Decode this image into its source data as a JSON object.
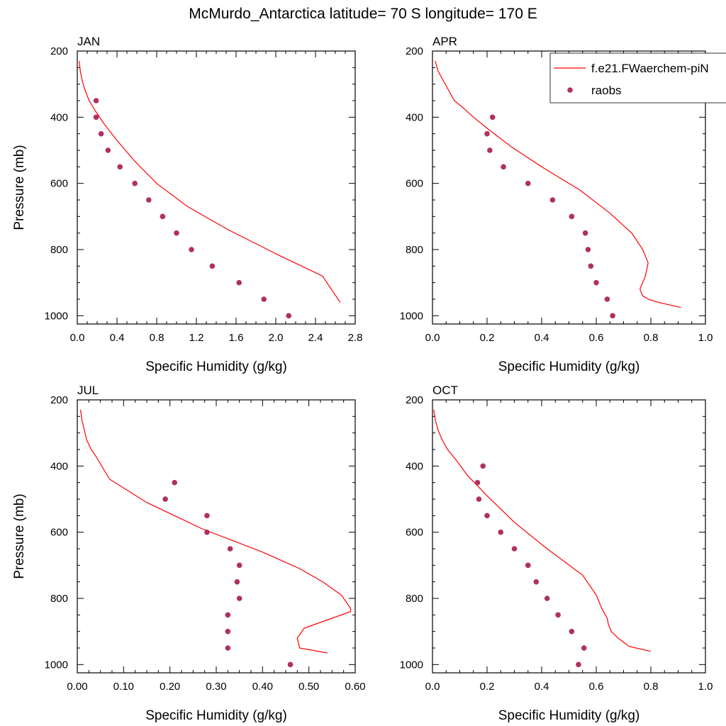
{
  "figure": {
    "title": "McMurdo_Antarctica  latitude= 70 S longitude= 170 E",
    "ylabel": "Pressure (mb)",
    "xlabel": "Specific Humidity (g/kg)"
  },
  "legend": {
    "placement": "top-right",
    "line_label": "f.e21.FWaerchem-piN",
    "dot_label": "raobs"
  },
  "colors": {
    "model_line": "#ff0000",
    "obs_dot": "#b03060"
  },
  "chart_data": [
    {
      "type": "scatter",
      "panel": "JAN",
      "xlim": [
        0,
        2.8
      ],
      "xticks": [
        "0.0",
        "0.4",
        "0.8",
        "1.2",
        "1.6",
        "2.0",
        "2.4",
        "2.8"
      ],
      "xtick_values": [
        0,
        0.4,
        0.8,
        1.2,
        1.6,
        2.0,
        2.4,
        2.8
      ],
      "ylim": [
        200,
        1025
      ],
      "y_inverted": true,
      "yticks": [
        "200",
        "400",
        "600",
        "800",
        "1000"
      ],
      "ytick_values": [
        200,
        400,
        600,
        800,
        1000
      ],
      "series": [
        {
          "name": "f.e21.FWaerchem-piN",
          "kind": "line",
          "x": [
            0.02,
            0.03,
            0.05,
            0.08,
            0.12,
            0.18,
            0.27,
            0.4,
            0.57,
            0.8,
            1.11,
            1.52,
            2.05,
            2.47,
            2.65
          ],
          "y": [
            230,
            260,
            290,
            320,
            350,
            380,
            420,
            470,
            530,
            600,
            670,
            740,
            820,
            880,
            960
          ]
        },
        {
          "name": "raobs",
          "kind": "points",
          "x": [
            0.19,
            0.19,
            0.24,
            0.31,
            0.43,
            0.58,
            0.72,
            0.86,
            1.0,
            1.15,
            1.36,
            1.63,
            1.88,
            2.13
          ],
          "y": [
            350,
            400,
            450,
            500,
            550,
            600,
            650,
            700,
            750,
            800,
            850,
            900,
            950,
            1000
          ]
        }
      ]
    },
    {
      "type": "scatter",
      "panel": "APR",
      "xlim": [
        0,
        1.0
      ],
      "xticks": [
        "0.0",
        "0.2",
        "0.4",
        "0.6",
        "0.8",
        "1.0"
      ],
      "xtick_values": [
        0,
        0.2,
        0.4,
        0.6,
        0.8,
        1.0
      ],
      "ylim": [
        200,
        1025
      ],
      "y_inverted": true,
      "yticks": [
        "200",
        "400",
        "600",
        "800",
        "1000"
      ],
      "ytick_values": [
        200,
        400,
        600,
        800,
        1000
      ],
      "series": [
        {
          "name": "f.e21.FWaerchem-piN",
          "kind": "line",
          "x": [
            0.01,
            0.02,
            0.04,
            0.06,
            0.08,
            0.11,
            0.15,
            0.21,
            0.29,
            0.4,
            0.54,
            0.65,
            0.73,
            0.77,
            0.79,
            0.78,
            0.76,
            0.77,
            0.79,
            0.83,
            0.91
          ],
          "y": [
            230,
            260,
            290,
            320,
            350,
            370,
            400,
            440,
            490,
            550,
            620,
            690,
            750,
            800,
            840,
            880,
            920,
            940,
            950,
            960,
            975
          ]
        },
        {
          "name": "raobs",
          "kind": "points",
          "x": [
            0.22,
            0.2,
            0.21,
            0.26,
            0.35,
            0.44,
            0.51,
            0.56,
            0.57,
            0.58,
            0.6,
            0.64,
            0.66
          ],
          "y": [
            400,
            450,
            500,
            550,
            600,
            650,
            700,
            750,
            800,
            850,
            900,
            950,
            1000
          ]
        }
      ]
    },
    {
      "type": "scatter",
      "panel": "JUL",
      "xlim": [
        0,
        0.6
      ],
      "xticks": [
        "0.00",
        "0.10",
        "0.20",
        "0.30",
        "0.40",
        "0.50",
        "0.60"
      ],
      "xtick_values": [
        0,
        0.1,
        0.2,
        0.3,
        0.4,
        0.5,
        0.6
      ],
      "ylim": [
        200,
        1025
      ],
      "y_inverted": true,
      "yticks": [
        "200",
        "400",
        "600",
        "800",
        "1000"
      ],
      "ytick_values": [
        200,
        400,
        600,
        800,
        1000
      ],
      "series": [
        {
          "name": "f.e21.FWaerchem-piN",
          "kind": "line",
          "x": [
            0.007,
            0.01,
            0.015,
            0.02,
            0.03,
            0.04,
            0.07,
            0.15,
            0.27,
            0.4,
            0.48,
            0.53,
            0.57,
            0.59,
            0.59,
            0.55,
            0.49,
            0.475,
            0.48,
            0.54
          ],
          "y": [
            230,
            260,
            290,
            320,
            350,
            370,
            440,
            510,
            590,
            660,
            710,
            750,
            790,
            830,
            840,
            860,
            890,
            920,
            950,
            965
          ]
        },
        {
          "name": "raobs",
          "kind": "points",
          "x": [
            0.21,
            0.19,
            0.28,
            0.28,
            0.33,
            0.35,
            0.345,
            0.35,
            0.325,
            0.325,
            0.325,
            0.46
          ],
          "y": [
            450,
            500,
            550,
            600,
            650,
            700,
            750,
            800,
            850,
            900,
            950,
            1000
          ]
        }
      ]
    },
    {
      "type": "scatter",
      "panel": "OCT",
      "xlim": [
        0,
        1.0
      ],
      "xticks": [
        "0.0",
        "0.2",
        "0.4",
        "0.6",
        "0.8",
        "1.0"
      ],
      "xtick_values": [
        0,
        0.2,
        0.4,
        0.6,
        0.8,
        1.0
      ],
      "ylim": [
        200,
        1025
      ],
      "y_inverted": true,
      "yticks": [
        "200",
        "400",
        "600",
        "800",
        "1000"
      ],
      "ytick_values": [
        200,
        400,
        600,
        800,
        1000
      ],
      "series": [
        {
          "name": "f.e21.FWaerchem-piN",
          "kind": "line",
          "x": [
            0.005,
            0.01,
            0.02,
            0.035,
            0.055,
            0.085,
            0.13,
            0.2,
            0.3,
            0.42,
            0.55,
            0.6,
            0.62,
            0.64,
            0.645,
            0.655,
            0.68,
            0.72,
            0.8
          ],
          "y": [
            230,
            260,
            290,
            320,
            350,
            380,
            430,
            490,
            570,
            650,
            730,
            790,
            830,
            860,
            880,
            900,
            920,
            945,
            960
          ]
        },
        {
          "name": "raobs",
          "kind": "points",
          "x": [
            0.185,
            0.165,
            0.17,
            0.2,
            0.25,
            0.3,
            0.35,
            0.38,
            0.42,
            0.46,
            0.51,
            0.555,
            0.535
          ],
          "y": [
            400,
            450,
            500,
            550,
            600,
            650,
            700,
            750,
            800,
            850,
            900,
            950,
            1000
          ]
        }
      ]
    }
  ]
}
